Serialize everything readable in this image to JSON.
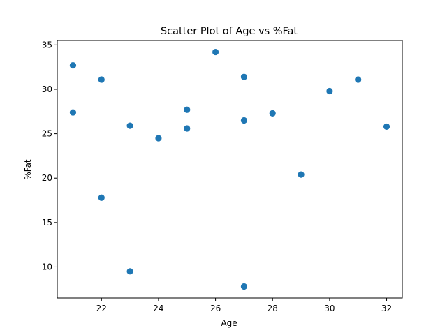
{
  "chart_data": {
    "type": "scatter",
    "title": "Scatter Plot of Age vs %Fat",
    "xlabel": "Age",
    "ylabel": "%Fat",
    "xlim": [
      20.45,
      32.55
    ],
    "ylim": [
      6.5,
      35.5
    ],
    "xticks": [
      22,
      24,
      26,
      28,
      30,
      32
    ],
    "yticks": [
      10,
      15,
      20,
      25,
      30,
      35
    ],
    "grid": false,
    "marker_color": "#1f77b4",
    "points": [
      {
        "x": 21,
        "y": 32.7
      },
      {
        "x": 21,
        "y": 27.4
      },
      {
        "x": 22,
        "y": 31.1
      },
      {
        "x": 22,
        "y": 17.8
      },
      {
        "x": 23,
        "y": 25.9
      },
      {
        "x": 23,
        "y": 9.5
      },
      {
        "x": 24,
        "y": 24.5
      },
      {
        "x": 25,
        "y": 27.7
      },
      {
        "x": 25,
        "y": 25.6
      },
      {
        "x": 26,
        "y": 34.2
      },
      {
        "x": 27,
        "y": 31.4
      },
      {
        "x": 27,
        "y": 26.5
      },
      {
        "x": 27,
        "y": 7.8
      },
      {
        "x": 28,
        "y": 27.3
      },
      {
        "x": 29,
        "y": 20.4
      },
      {
        "x": 30,
        "y": 29.8
      },
      {
        "x": 31,
        "y": 31.1
      },
      {
        "x": 32,
        "y": 25.8
      }
    ]
  }
}
